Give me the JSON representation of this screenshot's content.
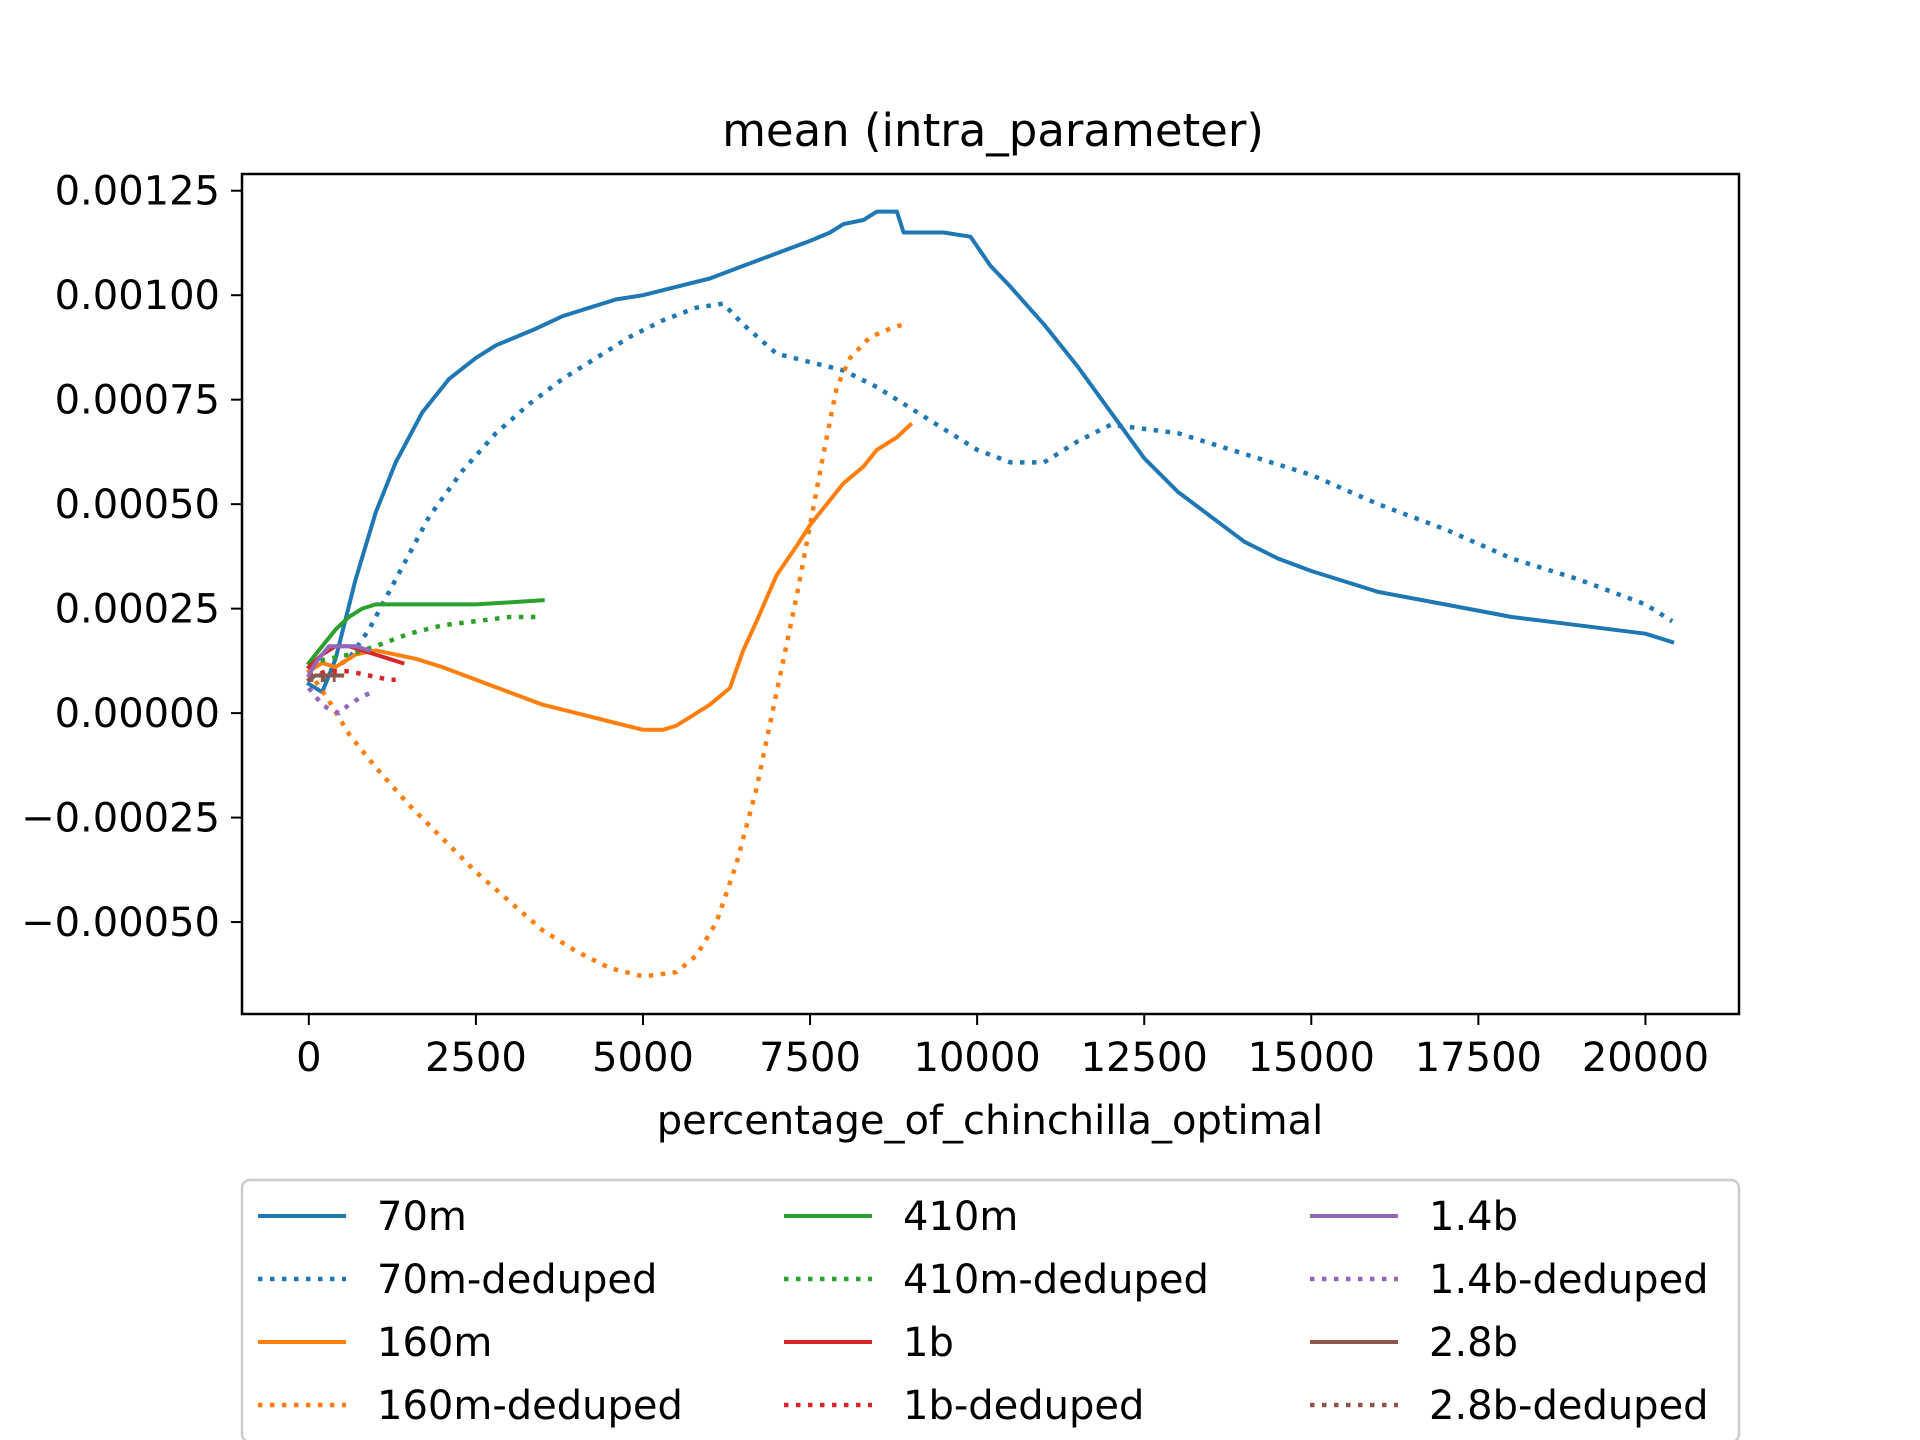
{
  "chart_data": {
    "type": "line",
    "title": "mean (intra_parameter)",
    "xlabel": "percentage_of_chinchilla_optimal",
    "ylabel": "",
    "xlim": [
      -1000,
      21400
    ],
    "ylim": [
      -0.00072,
      0.00129
    ],
    "xticks": [
      0,
      2500,
      5000,
      7500,
      10000,
      12500,
      15000,
      17500,
      20000
    ],
    "xtick_labels": [
      "0",
      "2500",
      "5000",
      "7500",
      "10000",
      "12500",
      "15000",
      "17500",
      "20000"
    ],
    "yticks": [
      -0.0005,
      -0.00025,
      0,
      0.00025,
      0.0005,
      0.00075,
      0.001,
      0.00125
    ],
    "ytick_labels": [
      "−0.00050",
      "−0.00025",
      "0.00000",
      "0.00025",
      "0.00050",
      "0.00075",
      "0.00100",
      "0.00125"
    ],
    "grid": false,
    "legend_placement": "below plot, 3 columns",
    "series": [
      {
        "name": "70m",
        "color": "#1f77b4",
        "style": "solid",
        "x": [
          0,
          200,
          400,
          700,
          1000,
          1300,
          1700,
          2100,
          2500,
          2800,
          3100,
          3400,
          3800,
          4200,
          4600,
          5000,
          5500,
          6000,
          6500,
          7000,
          7500,
          7800,
          8000,
          8300,
          8500,
          8800,
          8900,
          9100,
          9500,
          9900,
          10200,
          10500,
          11000,
          11500,
          12000,
          12500,
          13000,
          13500,
          14000,
          14500,
          15000,
          16000,
          17000,
          18000,
          19000,
          20000,
          20400
        ],
        "y": [
          7e-05,
          5e-05,
          0.00013,
          0.00032,
          0.00048,
          0.0006,
          0.00072,
          0.0008,
          0.00085,
          0.00088,
          0.0009,
          0.00092,
          0.00095,
          0.00097,
          0.00099,
          0.001,
          0.00102,
          0.00104,
          0.00107,
          0.0011,
          0.00113,
          0.00115,
          0.00117,
          0.00118,
          0.0012,
          0.0012,
          0.00115,
          0.00115,
          0.00115,
          0.00114,
          0.00107,
          0.00102,
          0.00093,
          0.00083,
          0.00072,
          0.00061,
          0.00053,
          0.00047,
          0.00041,
          0.00037,
          0.00034,
          0.00029,
          0.00026,
          0.00023,
          0.00021,
          0.00019,
          0.00017
        ]
      },
      {
        "name": "70m-deduped",
        "color": "#1f77b4",
        "style": "dotted",
        "x": [
          0,
          300,
          600,
          900,
          1300,
          1800,
          2300,
          2800,
          3300,
          3800,
          4300,
          4800,
          5300,
          5800,
          6200,
          6500,
          7000,
          7500,
          8000,
          8500,
          9000,
          9500,
          10000,
          10500,
          11000,
          11500,
          12000,
          12500,
          13000,
          14000,
          15000,
          16000,
          17000,
          18000,
          19000,
          20000,
          20400
        ],
        "y": [
          8e-05,
          0.0001,
          0.00013,
          0.0002,
          0.00032,
          0.00047,
          0.00058,
          0.00067,
          0.00074,
          0.0008,
          0.00085,
          0.0009,
          0.00094,
          0.00097,
          0.00098,
          0.00093,
          0.00086,
          0.00084,
          0.00082,
          0.00078,
          0.00073,
          0.00068,
          0.00063,
          0.0006,
          0.0006,
          0.00065,
          0.00069,
          0.00068,
          0.00067,
          0.00062,
          0.00057,
          0.0005,
          0.00044,
          0.00037,
          0.00032,
          0.00026,
          0.00022
        ]
      },
      {
        "name": "160m",
        "color": "#ff7f0e",
        "style": "solid",
        "x": [
          0,
          200,
          400,
          700,
          1000,
          1300,
          1600,
          2000,
          2500,
          3000,
          3500,
          4000,
          4500,
          5000,
          5300,
          5500,
          5700,
          6000,
          6300,
          6500,
          6700,
          7000,
          7300,
          7500,
          7800,
          8000,
          8300,
          8500,
          8800,
          9000
        ],
        "y": [
          0.0001,
          0.00012,
          0.00011,
          0.00014,
          0.00015,
          0.00014,
          0.00013,
          0.00011,
          8e-05,
          5e-05,
          2e-05,
          0,
          -2e-05,
          -4e-05,
          -4e-05,
          -3e-05,
          -1e-05,
          2e-05,
          6e-05,
          0.00015,
          0.00022,
          0.00033,
          0.0004,
          0.00045,
          0.00051,
          0.00055,
          0.00059,
          0.00063,
          0.00066,
          0.00069
        ]
      },
      {
        "name": "160m-deduped",
        "color": "#ff7f0e",
        "style": "dotted",
        "x": [
          0,
          300,
          600,
          1000,
          1500,
          2000,
          2500,
          3000,
          3500,
          4000,
          4500,
          5000,
          5500,
          5800,
          6100,
          6400,
          6700,
          7000,
          7300,
          7500,
          7700,
          7900,
          8100,
          8400,
          8700,
          8900
        ],
        "y": [
          0.0001,
          3e-05,
          -5e-05,
          -0.00013,
          -0.00022,
          -0.0003,
          -0.00038,
          -0.00045,
          -0.00052,
          -0.00057,
          -0.00061,
          -0.00063,
          -0.00062,
          -0.00058,
          -0.0005,
          -0.00036,
          -0.00018,
          5e-05,
          0.00028,
          0.00045,
          0.00062,
          0.00078,
          0.00085,
          0.0009,
          0.00092,
          0.00093
        ]
      },
      {
        "name": "410m",
        "color": "#2ca02c",
        "style": "solid",
        "x": [
          0,
          200,
          400,
          600,
          800,
          1000,
          1300,
          1600,
          2000,
          2500,
          3000,
          3500
        ],
        "y": [
          0.00012,
          0.00016,
          0.0002,
          0.00023,
          0.00025,
          0.00026,
          0.00026,
          0.00026,
          0.00026,
          0.00026,
          0.000265,
          0.00027
        ]
      },
      {
        "name": "410m-deduped",
        "color": "#2ca02c",
        "style": "dotted",
        "x": [
          0,
          300,
          600,
          1000,
          1500,
          2000,
          2500,
          3000,
          3500
        ],
        "y": [
          0.00012,
          0.00013,
          0.00014,
          0.00016,
          0.00019,
          0.00021,
          0.00022,
          0.00023,
          0.00023
        ]
      },
      {
        "name": "1b",
        "color": "#d62728",
        "style": "solid",
        "x": [
          0,
          200,
          400,
          600,
          800,
          1000,
          1200,
          1400
        ],
        "y": [
          0.00011,
          0.00014,
          0.00016,
          0.00016,
          0.00015,
          0.00014,
          0.00013,
          0.00012
        ]
      },
      {
        "name": "1b-deduped",
        "color": "#d62728",
        "style": "dotted",
        "x": [
          0,
          300,
          600,
          900,
          1200,
          1300
        ],
        "y": [
          9e-05,
          0.0001,
          0.0001,
          9e-05,
          8e-05,
          8e-05
        ]
      },
      {
        "name": "1.4b",
        "color": "#9467bd",
        "style": "solid",
        "x": [
          0,
          100,
          200,
          300,
          400,
          500,
          700,
          900
        ],
        "y": [
          9e-05,
          0.00012,
          0.00014,
          0.00016,
          0.00016,
          0.00016,
          0.00016,
          0.00015
        ]
      },
      {
        "name": "1.4b-deduped",
        "color": "#9467bd",
        "style": "dotted",
        "x": [
          0,
          100,
          200,
          300,
          450,
          600,
          800,
          950
        ],
        "y": [
          6e-05,
          4e-05,
          2e-05,
          1e-05,
          0,
          2e-05,
          4e-05,
          5e-05
        ]
      },
      {
        "name": "2.8b",
        "color": "#8c564b",
        "style": "solid",
        "x": [
          0,
          100,
          200,
          300,
          400,
          500
        ],
        "y": [
          8e-05,
          9e-05,
          9e-05,
          9e-05,
          9e-05,
          9e-05
        ]
      },
      {
        "name": "2.8b-deduped",
        "color": "#8c564b",
        "style": "dotted",
        "x": [
          0,
          100,
          200,
          300,
          400
        ],
        "y": [
          8e-05,
          8e-05,
          8e-05,
          8e-05,
          8e-05
        ]
      }
    ]
  }
}
